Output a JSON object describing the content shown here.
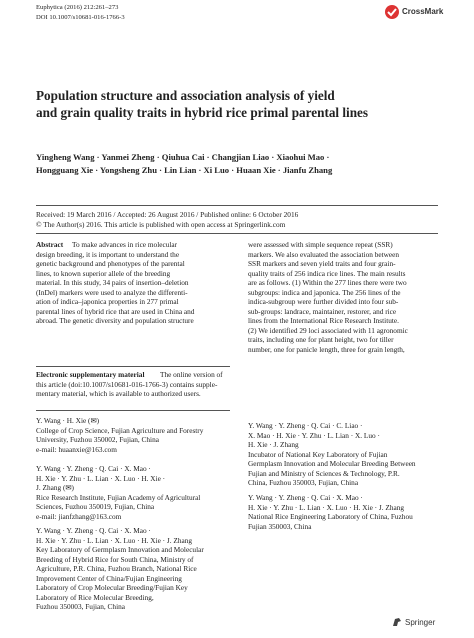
{
  "header": {
    "journal": "Euphytica (2016) 212:261–273",
    "doi": "DOI 10.1007/s10681-016-1766-3",
    "crossmark": "CrossMark"
  },
  "title": [
    "Population structure and association analysis of yield",
    "and grain quality traits in hybrid rice primal parental lines"
  ],
  "authors": [
    "Yingheng Wang · Yanmei Zheng · Qiuhua Cai · Changjian Liao · Xiaohui Mao ·",
    "Hongguang Xie · Yongsheng Zhu · Lin Lian · Xi Luo · Huaan Xie · Jianfu Zhang"
  ],
  "dates": "Received: 19 March 2016 / Accepted: 26 August 2016 / Published online: 6 October 2016",
  "copyright": "© The Author(s) 2016. This article is published with open access at Springerlink.com",
  "abstract": {
    "label": "Abstract",
    "left": [
      "To make advances in rice molecular",
      "design breeding, it is important to understand the",
      "genetic background and phenotypes of the parental",
      "lines, to known superior allele of the breeding",
      "material. In this study, 34 pairs of insertion–deletion",
      "(InDel) markers were used to analyze the differenti-",
      "ation of indica–japonica properties in 277 primal",
      "parental lines of hybrid rice that are used in China and",
      "abroad. The genetic diversity and population structure"
    ],
    "right": [
      "were assessed with simple sequence repeat (SSR)",
      "markers. We also evaluated the association between",
      "SSR markers and seven yield traits and four grain-",
      "quality traits of 256 indica rice lines. The main results",
      "are as follows. (1) Within the 277 lines there were two",
      "subgroups: indica and japonica. The 256 lines of the",
      "indica-subgroup were further divided into four sub-",
      "sub-groups: landrace, maintainer, restorer, and rice",
      "lines from the International Rice Research Institute.",
      "(2) We identified 29 loci associated with 11 agronomic",
      "traits, including one for plant height, two for tiller",
      "number, one for panicle length, three for grain length,"
    ]
  },
  "supplementary": {
    "label": "Electronic supplementary material",
    "lines": [
      "The online version of",
      "this article (doi:10.1007/s10681-016-1766-3) contains supple-",
      "mentary material, which is available to authorized users."
    ]
  },
  "affiliations_left": [
    [
      "Y. Wang · H. Xie (✉)",
      "College of Crop Science, Fujian Agriculture and Forestry",
      "University, Fuzhou 350002, Fujian, China",
      "e-mail: huaanxie@163.com"
    ],
    [
      "Y. Wang · Y. Zheng · Q. Cai · X. Mao ·",
      "H. Xie · Y. Zhu · L. Lian · X. Luo · H. Xie ·",
      "J. Zhang (✉)",
      "Rice Research Institute, Fujian Academy of Agricultural",
      "Sciences, Fuzhou 350019, Fujian, China",
      "e-mail: jianfzhang@163.com"
    ],
    [
      "Y. Wang · Y. Zheng · Q. Cai · X. Mao ·",
      "H. Xie · Y. Zhu · L. Lian · X. Luo · H. Xie · J. Zhang",
      "Key Laboratory of Germplasm Innovation and Molecular",
      "Breeding of Hybrid Rice for South China, Ministry of",
      "Agriculture, P.R. China, Fuzhou Branch, National Rice",
      "Improvement Center of China/Fujian Engineering",
      "Laboratory of Crop Molecular Breeding/Fujian Key",
      "Laboratory of Rice Molecular Breeding,",
      "Fuzhou 350003, Fujian, China"
    ]
  ],
  "affiliations_right": [
    [
      "Y. Wang · Y. Zheng · Q. Cai · C. Liao ·",
      "X. Mao · H. Xie · Y. Zhu · L. Lian · X. Luo ·",
      "H. Xie · J. Zhang",
      "Incubator of National Key Laboratory of Fujian",
      "Germplasm Innovation and Molecular Breeding Between",
      "Fujian and Ministry of Sciences & Technology, P.R.",
      "China, Fuzhou 350003, Fujian, China"
    ],
    [
      "Y. Wang · Y. Zheng · Q. Cai · X. Mao ·",
      "H. Xie · Y. Zhu · L. Lian · X. Luo · H. Xie · J. Zhang",
      "National Rice Engineering Laboratory of China, Fuzhou",
      "Fujian 350003, China"
    ]
  ],
  "footer": {
    "publisher": "Springer"
  }
}
